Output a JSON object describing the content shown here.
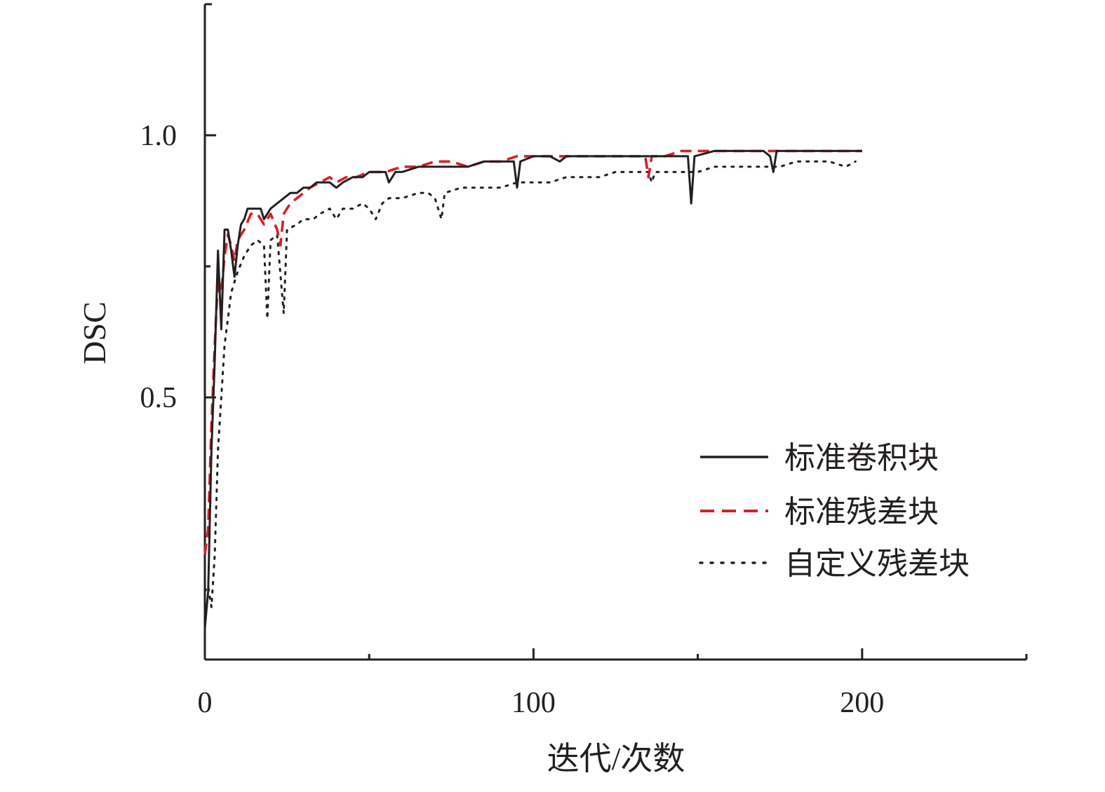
{
  "chart_data": {
    "type": "line",
    "xlabel": "迭代/次数",
    "ylabel": "DSC",
    "xlim": [
      0,
      250
    ],
    "ylim": [
      0,
      1.25
    ],
    "x_ticks": [
      {
        "value": 0,
        "label": "0"
      },
      {
        "value": 100,
        "label": "100"
      },
      {
        "value": 200,
        "label": "200"
      }
    ],
    "x_minor_ticks": [
      50,
      150,
      250
    ],
    "y_ticks": [
      {
        "value": 0.5,
        "label": "0.5"
      },
      {
        "value": 1.0,
        "label": "1.0"
      }
    ],
    "y_minor_ticks": [
      0.75
    ],
    "grid": false,
    "legend_position": "lower-right",
    "series": [
      {
        "name": "标准卷积块",
        "color": "#231f20",
        "style": "solid",
        "points": [
          [
            0,
            0.06
          ],
          [
            1,
            0.13
          ],
          [
            2,
            0.4
          ],
          [
            3,
            0.57
          ],
          [
            4,
            0.78
          ],
          [
            5,
            0.63
          ],
          [
            6,
            0.82
          ],
          [
            7,
            0.82
          ],
          [
            8,
            0.78
          ],
          [
            9,
            0.73
          ],
          [
            10,
            0.79
          ],
          [
            11,
            0.83
          ],
          [
            12,
            0.84
          ],
          [
            13,
            0.86
          ],
          [
            15,
            0.86
          ],
          [
            17,
            0.86
          ],
          [
            18,
            0.84
          ],
          [
            20,
            0.86
          ],
          [
            22,
            0.87
          ],
          [
            24,
            0.88
          ],
          [
            26,
            0.89
          ],
          [
            28,
            0.89
          ],
          [
            30,
            0.9
          ],
          [
            32,
            0.9
          ],
          [
            34,
            0.91
          ],
          [
            36,
            0.91
          ],
          [
            38,
            0.91
          ],
          [
            40,
            0.9
          ],
          [
            42,
            0.91
          ],
          [
            45,
            0.92
          ],
          [
            48,
            0.92
          ],
          [
            50,
            0.93
          ],
          [
            52,
            0.93
          ],
          [
            55,
            0.93
          ],
          [
            56,
            0.91
          ],
          [
            58,
            0.93
          ],
          [
            60,
            0.93
          ],
          [
            65,
            0.94
          ],
          [
            70,
            0.94
          ],
          [
            75,
            0.94
          ],
          [
            80,
            0.94
          ],
          [
            85,
            0.95
          ],
          [
            90,
            0.95
          ],
          [
            94,
            0.95
          ],
          [
            95,
            0.9
          ],
          [
            96,
            0.95
          ],
          [
            100,
            0.96
          ],
          [
            105,
            0.96
          ],
          [
            108,
            0.95
          ],
          [
            110,
            0.96
          ],
          [
            115,
            0.96
          ],
          [
            120,
            0.96
          ],
          [
            125,
            0.96
          ],
          [
            130,
            0.96
          ],
          [
            135,
            0.96
          ],
          [
            140,
            0.96
          ],
          [
            144,
            0.96
          ],
          [
            147,
            0.96
          ],
          [
            148,
            0.87
          ],
          [
            149,
            0.96
          ],
          [
            155,
            0.97
          ],
          [
            160,
            0.97
          ],
          [
            165,
            0.97
          ],
          [
            170,
            0.97
          ],
          [
            172,
            0.96
          ],
          [
            173,
            0.93
          ],
          [
            174,
            0.97
          ],
          [
            180,
            0.97
          ],
          [
            185,
            0.97
          ],
          [
            190,
            0.97
          ],
          [
            195,
            0.97
          ],
          [
            200,
            0.97
          ]
        ]
      },
      {
        "name": "标准残差块",
        "color": "#d62026",
        "style": "dashed",
        "points": [
          [
            0,
            0.2
          ],
          [
            1,
            0.25
          ],
          [
            2,
            0.45
          ],
          [
            3,
            0.6
          ],
          [
            4,
            0.73
          ],
          [
            5,
            0.7
          ],
          [
            6,
            0.77
          ],
          [
            7,
            0.81
          ],
          [
            8,
            0.79
          ],
          [
            9,
            0.76
          ],
          [
            10,
            0.8
          ],
          [
            12,
            0.82
          ],
          [
            14,
            0.85
          ],
          [
            16,
            0.85
          ],
          [
            18,
            0.83
          ],
          [
            20,
            0.85
          ],
          [
            22,
            0.82
          ],
          [
            23,
            0.79
          ],
          [
            24,
            0.85
          ],
          [
            26,
            0.87
          ],
          [
            28,
            0.88
          ],
          [
            30,
            0.89
          ],
          [
            32,
            0.9
          ],
          [
            35,
            0.91
          ],
          [
            38,
            0.92
          ],
          [
            40,
            0.91
          ],
          [
            43,
            0.92
          ],
          [
            46,
            0.92
          ],
          [
            50,
            0.93
          ],
          [
            55,
            0.93
          ],
          [
            60,
            0.94
          ],
          [
            65,
            0.94
          ],
          [
            70,
            0.95
          ],
          [
            75,
            0.95
          ],
          [
            80,
            0.94
          ],
          [
            85,
            0.95
          ],
          [
            90,
            0.95
          ],
          [
            95,
            0.96
          ],
          [
            100,
            0.96
          ],
          [
            105,
            0.96
          ],
          [
            110,
            0.96
          ],
          [
            115,
            0.96
          ],
          [
            120,
            0.96
          ],
          [
            125,
            0.96
          ],
          [
            130,
            0.96
          ],
          [
            134,
            0.96
          ],
          [
            135,
            0.92
          ],
          [
            136,
            0.96
          ],
          [
            140,
            0.96
          ],
          [
            145,
            0.97
          ],
          [
            150,
            0.97
          ],
          [
            155,
            0.97
          ],
          [
            160,
            0.97
          ],
          [
            165,
            0.97
          ],
          [
            170,
            0.97
          ],
          [
            175,
            0.97
          ],
          [
            180,
            0.97
          ],
          [
            185,
            0.97
          ],
          [
            190,
            0.97
          ],
          [
            195,
            0.97
          ],
          [
            200,
            0.97
          ]
        ]
      },
      {
        "name": "自定义残差块",
        "color": "#231f20",
        "style": "dotted",
        "points": [
          [
            0,
            0.13
          ],
          [
            1,
            0.14
          ],
          [
            2,
            0.1
          ],
          [
            3,
            0.2
          ],
          [
            4,
            0.4
          ],
          [
            5,
            0.5
          ],
          [
            6,
            0.6
          ],
          [
            7,
            0.65
          ],
          [
            8,
            0.7
          ],
          [
            9,
            0.72
          ],
          [
            10,
            0.74
          ],
          [
            12,
            0.77
          ],
          [
            14,
            0.79
          ],
          [
            16,
            0.8
          ],
          [
            18,
            0.79
          ],
          [
            19,
            0.65
          ],
          [
            20,
            0.8
          ],
          [
            22,
            0.81
          ],
          [
            24,
            0.66
          ],
          [
            25,
            0.82
          ],
          [
            28,
            0.83
          ],
          [
            30,
            0.84
          ],
          [
            33,
            0.84
          ],
          [
            35,
            0.85
          ],
          [
            38,
            0.86
          ],
          [
            40,
            0.84
          ],
          [
            42,
            0.86
          ],
          [
            45,
            0.86
          ],
          [
            48,
            0.87
          ],
          [
            50,
            0.86
          ],
          [
            52,
            0.84
          ],
          [
            54,
            0.87
          ],
          [
            56,
            0.88
          ],
          [
            60,
            0.88
          ],
          [
            65,
            0.89
          ],
          [
            68,
            0.89
          ],
          [
            70,
            0.88
          ],
          [
            72,
            0.84
          ],
          [
            73,
            0.89
          ],
          [
            78,
            0.9
          ],
          [
            85,
            0.9
          ],
          [
            90,
            0.9
          ],
          [
            95,
            0.91
          ],
          [
            100,
            0.91
          ],
          [
            105,
            0.91
          ],
          [
            110,
            0.92
          ],
          [
            115,
            0.92
          ],
          [
            120,
            0.92
          ],
          [
            125,
            0.93
          ],
          [
            130,
            0.93
          ],
          [
            135,
            0.93
          ],
          [
            136,
            0.91
          ],
          [
            137,
            0.93
          ],
          [
            140,
            0.93
          ],
          [
            145,
            0.93
          ],
          [
            150,
            0.93
          ],
          [
            155,
            0.94
          ],
          [
            160,
            0.94
          ],
          [
            165,
            0.94
          ],
          [
            170,
            0.94
          ],
          [
            175,
            0.94
          ],
          [
            180,
            0.95
          ],
          [
            185,
            0.95
          ],
          [
            190,
            0.95
          ],
          [
            195,
            0.94
          ],
          [
            198,
            0.95
          ]
        ]
      }
    ]
  }
}
